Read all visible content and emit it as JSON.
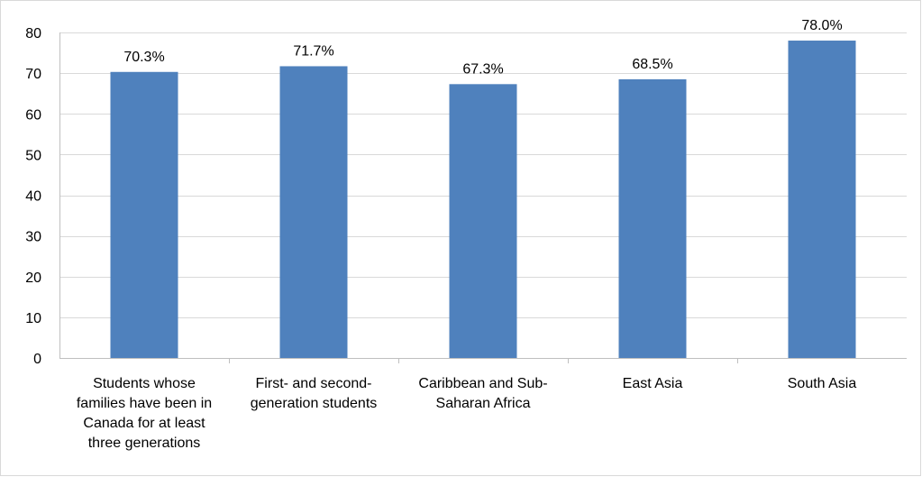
{
  "chart_data": {
    "type": "bar",
    "categories": [
      [
        "Students whose",
        "families have been in",
        "Canada for at least",
        "three generations"
      ],
      [
        "First- and second-",
        "generation students"
      ],
      [
        "Caribbean and Sub-",
        "Saharan Africa"
      ],
      [
        "East Asia"
      ],
      [
        "South Asia"
      ]
    ],
    "values": [
      70.3,
      71.7,
      67.3,
      68.5,
      78.0
    ],
    "data_labels": [
      "70.3%",
      "71.7%",
      "67.3%",
      "68.5%",
      "78.0%"
    ],
    "ylim": [
      0,
      80
    ],
    "yticks": [
      0,
      10,
      20,
      30,
      40,
      50,
      60,
      70,
      80
    ],
    "grid": true,
    "bar_color": "#4f81bd",
    "grid_color": "#d9d9d9",
    "title": "",
    "xlabel": "",
    "ylabel": ""
  }
}
